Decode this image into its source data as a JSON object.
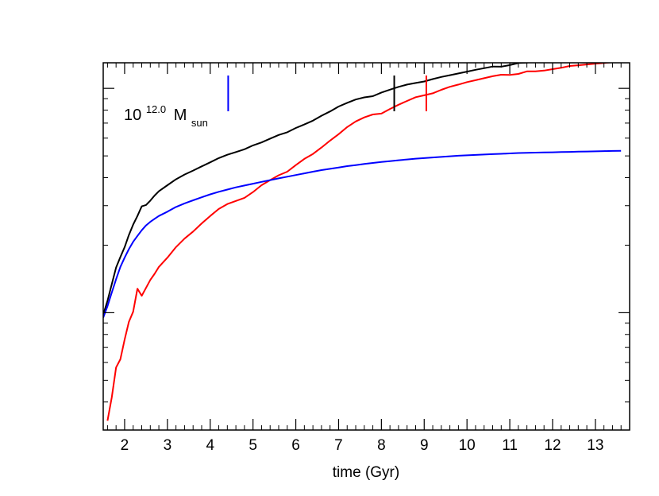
{
  "chart_data": {
    "type": "line",
    "xlabel": "time (Gyr)",
    "ylabel": "",
    "xlim": [
      1.5,
      13.8
    ],
    "x_ticks": [
      2,
      3,
      4,
      5,
      6,
      7,
      8,
      9,
      10,
      11,
      12,
      13
    ],
    "x_tick_labels": [
      "2",
      "3",
      "4",
      "5",
      "6",
      "7",
      "8",
      "9",
      "10",
      "11",
      "12",
      "13"
    ],
    "y_scale": "log",
    "y_tick_labels_shown": false,
    "ylim": [
      0.03,
      1.3
    ],
    "annotation": {
      "base": "10",
      "exponent": "12.0",
      "symbol": "M",
      "subscript": "sun"
    },
    "markers": [
      {
        "x": 4.42,
        "color": "#0000ff"
      },
      {
        "x": 8.3,
        "color": "#000000"
      },
      {
        "x": 9.05,
        "color": "#ff0000"
      }
    ],
    "series": [
      {
        "color": "#000000",
        "x": [
          1.5,
          1.6,
          1.7,
          1.8,
          1.9,
          2.0,
          2.1,
          2.2,
          2.3,
          2.4,
          2.5,
          2.6,
          2.7,
          2.8,
          3.0,
          3.2,
          3.4,
          3.6,
          3.8,
          4.0,
          4.2,
          4.4,
          4.6,
          4.8,
          5.0,
          5.2,
          5.4,
          5.6,
          5.8,
          6.0,
          6.2,
          6.4,
          6.6,
          6.8,
          7.0,
          7.2,
          7.4,
          7.6,
          7.8,
          8.0,
          8.2,
          8.4,
          8.6,
          8.8,
          9.0,
          9.2,
          9.4,
          9.6,
          9.8,
          10.0,
          10.2,
          10.4,
          10.6,
          10.8,
          11.0,
          11.2,
          11.4,
          11.6,
          11.8,
          12.0,
          12.2,
          12.4,
          12.6,
          12.8,
          13.0,
          13.2,
          13.4,
          13.6
        ],
        "y": [
          0.098,
          0.113,
          0.134,
          0.159,
          0.177,
          0.196,
          0.222,
          0.247,
          0.27,
          0.298,
          0.302,
          0.316,
          0.333,
          0.348,
          0.37,
          0.393,
          0.413,
          0.43,
          0.449,
          0.468,
          0.489,
          0.506,
          0.52,
          0.535,
          0.557,
          0.574,
          0.597,
          0.62,
          0.637,
          0.666,
          0.69,
          0.718,
          0.755,
          0.789,
          0.83,
          0.862,
          0.892,
          0.912,
          0.923,
          0.958,
          0.987,
          1.015,
          1.04,
          1.057,
          1.073,
          1.1,
          1.124,
          1.145,
          1.165,
          1.187,
          1.21,
          1.23,
          1.251,
          1.249,
          1.27,
          1.297,
          1.303,
          1.315,
          1.327,
          1.345,
          1.372,
          1.382,
          1.4,
          1.409,
          1.418,
          1.433,
          1.455,
          1.47
        ]
      },
      {
        "color": "#ff0000",
        "x": [
          1.6,
          1.7,
          1.8,
          1.9,
          2.0,
          2.1,
          2.2,
          2.3,
          2.4,
          2.5,
          2.6,
          2.7,
          2.8,
          3.0,
          3.2,
          3.4,
          3.6,
          3.8,
          4.0,
          4.2,
          4.4,
          4.6,
          4.8,
          5.0,
          5.2,
          5.4,
          5.6,
          5.8,
          6.0,
          6.2,
          6.4,
          6.6,
          6.8,
          7.0,
          7.2,
          7.4,
          7.6,
          7.8,
          8.0,
          8.2,
          8.4,
          8.6,
          8.8,
          9.0,
          9.2,
          9.4,
          9.6,
          9.8,
          10.0,
          10.2,
          10.4,
          10.6,
          10.8,
          11.0,
          11.2,
          11.4,
          11.6,
          11.8,
          12.0,
          12.2,
          12.4,
          12.6,
          12.8,
          13.0,
          13.2,
          13.4,
          13.6
        ],
        "y": [
          0.033,
          0.042,
          0.057,
          0.062,
          0.076,
          0.091,
          0.101,
          0.128,
          0.119,
          0.129,
          0.14,
          0.149,
          0.16,
          0.176,
          0.196,
          0.214,
          0.23,
          0.25,
          0.27,
          0.29,
          0.305,
          0.315,
          0.325,
          0.345,
          0.37,
          0.39,
          0.41,
          0.425,
          0.455,
          0.485,
          0.51,
          0.545,
          0.585,
          0.625,
          0.672,
          0.712,
          0.742,
          0.765,
          0.772,
          0.809,
          0.845,
          0.879,
          0.913,
          0.931,
          0.95,
          0.985,
          1.016,
          1.04,
          1.066,
          1.087,
          1.11,
          1.133,
          1.15,
          1.147,
          1.16,
          1.19,
          1.19,
          1.2,
          1.218,
          1.235,
          1.258,
          1.268,
          1.278,
          1.288,
          1.297,
          1.307,
          1.32
        ]
      },
      {
        "color": "#0000ff",
        "x": [
          1.5,
          1.6,
          1.7,
          1.8,
          1.9,
          2.0,
          2.1,
          2.2,
          2.3,
          2.4,
          2.5,
          2.6,
          2.7,
          2.8,
          3.0,
          3.2,
          3.4,
          3.6,
          3.8,
          4.0,
          4.2,
          4.4,
          4.6,
          4.8,
          5.0,
          5.2,
          5.4,
          5.6,
          5.8,
          6.0,
          6.2,
          6.4,
          6.6,
          6.8,
          7.0,
          7.2,
          7.4,
          7.6,
          7.8,
          8.0,
          8.2,
          8.4,
          8.6,
          8.8,
          9.0,
          9.2,
          9.4,
          9.6,
          9.8,
          10.0,
          10.2,
          10.4,
          10.6,
          10.8,
          11.0,
          11.2,
          11.4,
          11.6,
          11.8,
          12.0,
          12.2,
          12.4,
          12.6,
          12.8,
          13.0,
          13.2,
          13.4,
          13.6
        ],
        "y": [
          0.095,
          0.107,
          0.123,
          0.141,
          0.16,
          0.176,
          0.192,
          0.207,
          0.22,
          0.233,
          0.245,
          0.254,
          0.262,
          0.27,
          0.282,
          0.296,
          0.307,
          0.317,
          0.327,
          0.337,
          0.346,
          0.354,
          0.362,
          0.369,
          0.376,
          0.383,
          0.39,
          0.397,
          0.404,
          0.411,
          0.418,
          0.425,
          0.432,
          0.438,
          0.444,
          0.45,
          0.455,
          0.46,
          0.465,
          0.47,
          0.474,
          0.478,
          0.482,
          0.486,
          0.489,
          0.492,
          0.495,
          0.498,
          0.501,
          0.503,
          0.505,
          0.507,
          0.509,
          0.511,
          0.513,
          0.515,
          0.516,
          0.517,
          0.518,
          0.519,
          0.52,
          0.521,
          0.522,
          0.523,
          0.524,
          0.525,
          0.526,
          0.527
        ]
      }
    ]
  }
}
